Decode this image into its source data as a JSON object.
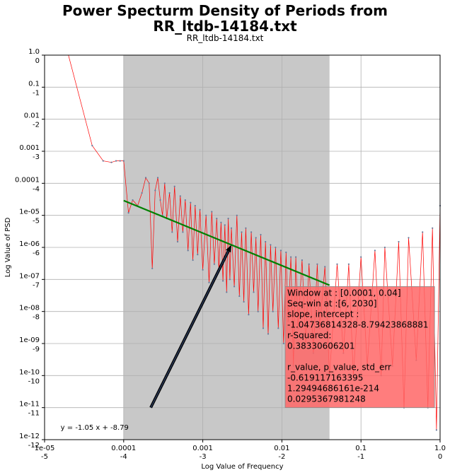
{
  "figure": {
    "title_line1": "Power Specturm Density of Periods from",
    "title_line2": "RR_ltdb-14184.txt",
    "subtitle": "RR_ltdb-14184.txt"
  },
  "chart_data": {
    "type": "line",
    "title": "Power Specturm Density of Periods from RR_ltdb-14184.txt",
    "subtitle": "RR_ltdb-14184.txt",
    "xlabel": "Log Value of Frequency",
    "ylabel": "Log Value of PSD",
    "xscale": "log",
    "yscale": "log",
    "xlim": [
      1e-05,
      1.0
    ],
    "ylim": [
      1e-12,
      1.0
    ],
    "grid": true,
    "x_ticks": [
      {
        "value": 1e-05,
        "top": "1e-05",
        "bottom": "-5"
      },
      {
        "value": 0.0001,
        "top": "0.0001",
        "bottom": "-4"
      },
      {
        "value": 0.001,
        "top": "0.001",
        "bottom": "-3"
      },
      {
        "value": 0.01,
        "top": "0.01",
        "bottom": "-2"
      },
      {
        "value": 0.1,
        "top": "0.1",
        "bottom": "-1"
      },
      {
        "value": 1.0,
        "top": "1.0",
        "bottom": "0"
      }
    ],
    "y_ticks": [
      {
        "value": 1.0,
        "top": "1.0",
        "bottom": "0"
      },
      {
        "value": 0.1,
        "top": "0.1",
        "bottom": "-1"
      },
      {
        "value": 0.01,
        "top": "0.01",
        "bottom": "-2"
      },
      {
        "value": 0.001,
        "top": "0.001",
        "bottom": "-3"
      },
      {
        "value": 0.0001,
        "top": "0.0001",
        "bottom": "-4"
      },
      {
        "value": 1e-05,
        "top": "1e-05",
        "bottom": "-5"
      },
      {
        "value": 1e-06,
        "top": "1e-06",
        "bottom": "-6"
      },
      {
        "value": 1e-07,
        "top": "1e-07",
        "bottom": "-7"
      },
      {
        "value": 1e-08,
        "top": "1e-08",
        "bottom": "-8"
      },
      {
        "value": 1e-09,
        "top": "1e-09",
        "bottom": "-9"
      },
      {
        "value": 1e-10,
        "top": "1e-10",
        "bottom": "-10"
      },
      {
        "value": 1e-11,
        "top": "1e-11",
        "bottom": "-11"
      },
      {
        "value": 1e-12,
        "top": "1e-12",
        "bottom": "-12"
      }
    ],
    "window": [
      0.0001,
      0.04
    ],
    "series": [
      {
        "color": "#ff0000",
        "marker_color": "#6b7a9a",
        "x": [
          2e-05,
          4e-05,
          5.5e-05,
          7e-05,
          8e-05,
          9e-05,
          0.0001,
          0.000115,
          0.00013,
          0.00015,
          0.00017,
          0.00019,
          0.00021,
          0.00023,
          0.00025,
          0.00027,
          0.00029,
          0.00031,
          0.00033,
          0.00035,
          0.00038,
          0.00041,
          0.00044,
          0.00048,
          0.00052,
          0.00056,
          0.0006,
          0.00065,
          0.0007,
          0.00075,
          0.0008,
          0.00086,
          0.00092,
          0.001,
          0.0011,
          0.0012,
          0.0013,
          0.0014,
          0.0015,
          0.0016,
          0.0017,
          0.0018,
          0.0019,
          0.002,
          0.0021,
          0.0022,
          0.0023,
          0.0025,
          0.0027,
          0.0029,
          0.0031,
          0.0033,
          0.0035,
          0.0038,
          0.0041,
          0.0044,
          0.0047,
          0.005,
          0.0054,
          0.0058,
          0.0062,
          0.0067,
          0.0072,
          0.0077,
          0.0083,
          0.009,
          0.0097,
          0.0105,
          0.0113,
          0.012,
          0.013,
          0.014,
          0.015,
          0.016,
          0.018,
          0.02,
          0.022,
          0.025,
          0.028,
          0.03,
          0.035,
          0.04,
          0.05,
          0.06,
          0.07,
          0.08,
          0.1,
          0.12,
          0.15,
          0.18,
          0.2,
          0.25,
          0.3,
          0.35,
          0.4,
          0.5,
          0.6,
          0.7,
          0.8,
          0.9,
          1.0
        ],
        "y": [
          1.0,
          0.0015,
          0.0005,
          0.00045,
          0.0005,
          0.0005,
          0.0005,
          1.2e-05,
          3e-05,
          2e-05,
          5e-05,
          0.00015,
          0.0001,
          2.2e-07,
          6e-05,
          0.00015,
          3e-05,
          1e-05,
          0.0001,
          8e-06,
          5e-05,
          3e-06,
          8e-05,
          1.5e-06,
          4e-05,
          3e-06,
          3e-05,
          8e-07,
          2.5e-05,
          4e-07,
          2e-05,
          6e-07,
          1.5e-05,
          2e-07,
          1e-05,
          8e-08,
          1.3e-05,
          3e-07,
          8e-06,
          2e-07,
          6e-06,
          9e-08,
          5e-06,
          4e-08,
          8e-06,
          1e-07,
          4e-06,
          6e-08,
          1e-05,
          3e-08,
          3e-06,
          2e-08,
          4e-06,
          8e-09,
          3e-06,
          4e-08,
          2e-06,
          1e-08,
          2.5e-06,
          3e-09,
          1.5e-06,
          2e-09,
          1.2e-06,
          1e-08,
          1e-06,
          3e-09,
          8e-07,
          1e-09,
          7e-07,
          5e-09,
          5e-07,
          2e-10,
          5e-07,
          3e-09,
          4e-07,
          1e-09,
          3e-07,
          5e-10,
          3e-07,
          3e-09,
          2.5e-07,
          1e-10,
          3e-07,
          5e-10,
          3e-07,
          1e-10,
          5e-07,
          2e-10,
          8e-07,
          1e-10,
          1e-06,
          2e-10,
          1.5e-06,
          1e-11,
          2e-06,
          3e-10,
          3e-06,
          1e-11,
          4e-06,
          2e-12,
          2e-05
        ]
      }
    ],
    "fit_line": {
      "color": "#008000",
      "x": [
        0.0001,
        0.04
      ],
      "y": [
        2.9e-05,
        6.6e-08
      ]
    },
    "fit_annotation": {
      "text": "y = -1.05 x + -8.79",
      "text_x": 1.5e-05,
      "text_y": 2.5e-12,
      "arrow_tail_x": 0.00022,
      "arrow_tail_y": 1e-11,
      "arrow_head_x": 0.0023,
      "arrow_head_y": 1.2e-06
    },
    "stats_box": {
      "color": "#ff6666",
      "x_from": 0.011,
      "y_from": 1e-11,
      "x_to": 0.85,
      "y_to": 6e-08,
      "lines": [
        "Window at : [0.0001, 0.04]",
        "Seq-win at :[6, 2030]",
        "slope, intercept :",
        "-1.04736814328-8.79423868881",
        "r-Squared:",
        "0.38330606201",
        "",
        " r_value, p_value, std_err",
        "-0.619117163395",
        "1.29494686161e-214",
        "0.0295367981248"
      ]
    }
  }
}
